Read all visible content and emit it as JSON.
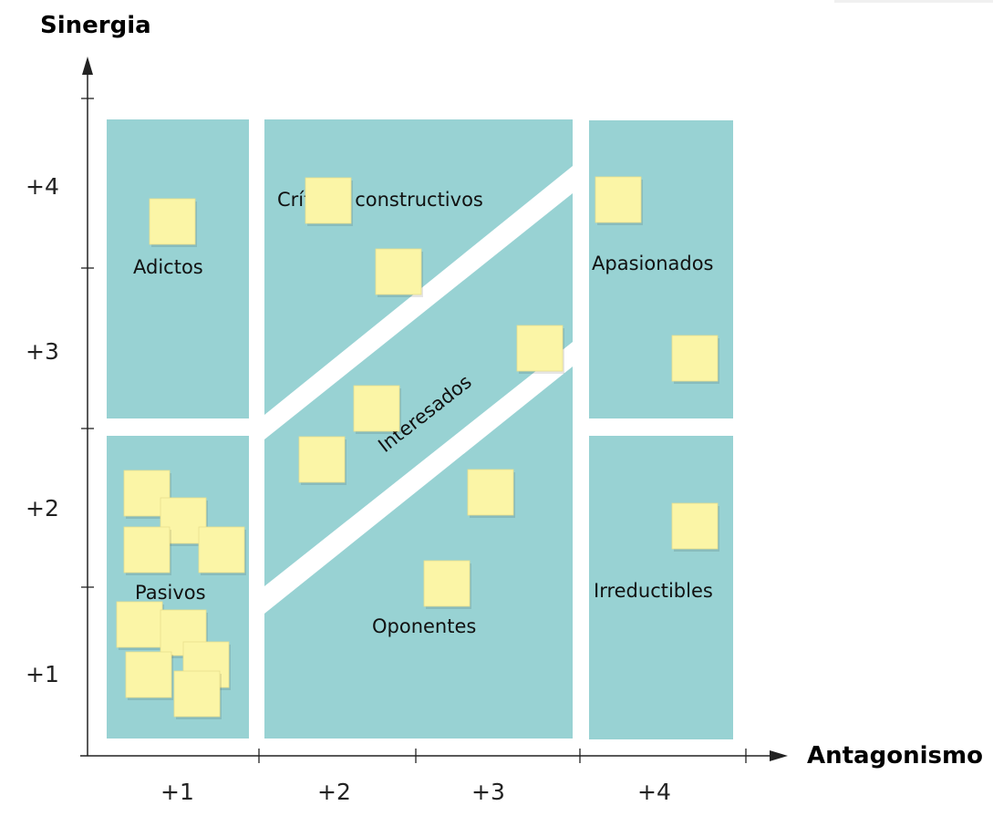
{
  "axes": {
    "y_title": "Sinergia",
    "x_title": "Antagonismo",
    "y_ticks": [
      "+1",
      "+2",
      "+3",
      "+4"
    ],
    "x_ticks": [
      "+1",
      "+2",
      "+3",
      "+4"
    ]
  },
  "zones": {
    "adictos": "Adictos",
    "pasivos": "Pasivos",
    "criticos": "Críticos constructivos",
    "interesados": "Interesados",
    "oponentes": "Oponentes",
    "apasionados": "Apasionados",
    "irreductibles": "Irreductibles"
  },
  "colors": {
    "zone_fill": "#98d2d3",
    "note_fill": "#fbf5a6",
    "axis": "#222222"
  }
}
